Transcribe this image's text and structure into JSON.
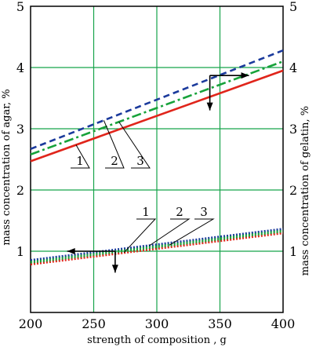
{
  "chart_data": {
    "type": "line",
    "xlabel": "strength of composition , g",
    "ylabel_left": "mass concentration of agar, %",
    "ylabel_right": "mass concentration of gelatin, %",
    "xlim": [
      200,
      400
    ],
    "ylim": [
      0,
      5
    ],
    "x_ticks": [
      "200",
      "250",
      "300",
      "350",
      "400"
    ],
    "y_ticks_left": [
      "1",
      "2",
      "3",
      "4",
      "5"
    ],
    "y_ticks_right": [
      "1",
      "2",
      "3",
      "4",
      "5"
    ],
    "grid": true,
    "upper_group_axis": "right",
    "lower_group_axis": "left",
    "upper_series": [
      {
        "label": "1",
        "color": "#e0251b",
        "style": "solid",
        "x": [
          200,
          400
        ],
        "y": [
          2.47,
          3.95
        ]
      },
      {
        "label": "2",
        "color": "#1b3a9c",
        "style": "dashed",
        "x": [
          200,
          400
        ],
        "y": [
          2.67,
          4.28
        ]
      },
      {
        "label": "3",
        "color": "#17a23a",
        "style": "dashdot",
        "x": [
          200,
          400
        ],
        "y": [
          2.58,
          4.1
        ]
      }
    ],
    "lower_series": [
      {
        "label": "1",
        "color": "#e0251b",
        "style": "dotted",
        "x": [
          200,
          400
        ],
        "y": [
          0.79,
          1.3
        ]
      },
      {
        "label": "2",
        "color": "#1b3a9c",
        "style": "dotted",
        "x": [
          200,
          400
        ],
        "y": [
          0.85,
          1.36
        ]
      },
      {
        "label": "3",
        "color": "#17a23a",
        "style": "dotted",
        "x": [
          200,
          400
        ],
        "y": [
          0.82,
          1.33
        ]
      }
    ]
  }
}
